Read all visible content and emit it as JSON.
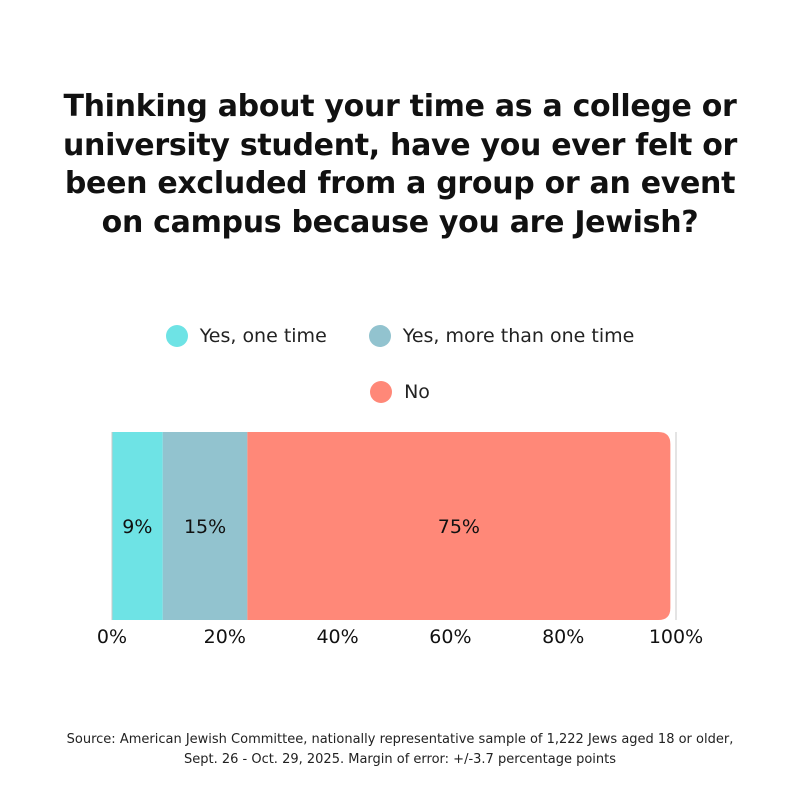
{
  "chart_data": {
    "type": "bar",
    "orientation": "horizontal-stacked",
    "title": "Thinking about your time as a college or university student, have you ever felt or been excluded from a group or an event on campus because you are Jewish?",
    "series": [
      {
        "name": "Yes, one time",
        "value": 9,
        "label": "9%",
        "color": "#6ee3e5"
      },
      {
        "name": "Yes, more than one time",
        "value": 15,
        "label": "15%",
        "color": "#92c3cf"
      },
      {
        "name": "No",
        "value": 75,
        "label": "75%",
        "color": "#ff8878"
      }
    ],
    "xlim": [
      0,
      100
    ],
    "xticks": [
      {
        "value": 0,
        "label": "0%"
      },
      {
        "value": 20,
        "label": "20%"
      },
      {
        "value": 40,
        "label": "40%"
      },
      {
        "value": 60,
        "label": "60%"
      },
      {
        "value": 80,
        "label": "80%"
      },
      {
        "value": 100,
        "label": "100%"
      }
    ],
    "legend_position": "top-center",
    "grid": false
  },
  "source": {
    "line1": "Source: American Jewish Committee,  nationally representative sample of 1,222 Jews aged 18 or older,",
    "line2": "Sept. 26 - Oct. 29, 2025. Margin of error: +/-3.7 percentage points"
  }
}
